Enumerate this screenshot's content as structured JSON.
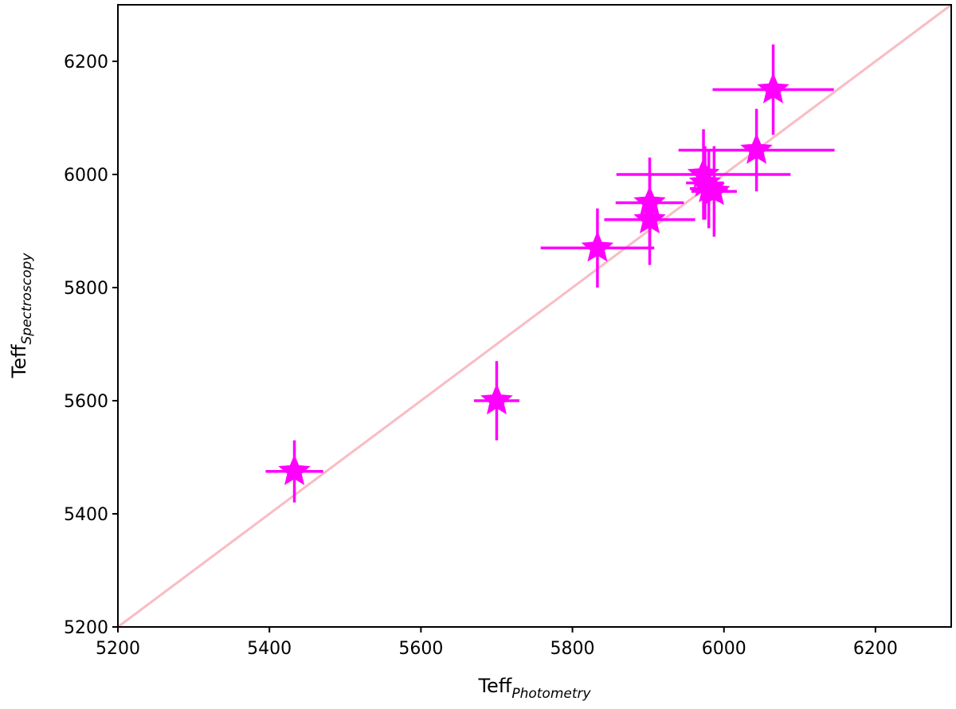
{
  "chart_data": {
    "type": "scatter",
    "title": "",
    "xlabel": {
      "main": "Teff",
      "sub": "Photometry"
    },
    "ylabel": {
      "main": "Teff",
      "sub": "Spectroscopy"
    },
    "xlim": [
      5200,
      6300
    ],
    "ylim": [
      5200,
      6300
    ],
    "xticks": [
      5200,
      5400,
      5600,
      5800,
      6000,
      6200
    ],
    "yticks": [
      5200,
      5400,
      5600,
      5800,
      6000,
      6200
    ],
    "xtick_labels": [
      "5200",
      "5400",
      "5600",
      "5800",
      "6000",
      "6200"
    ],
    "ytick_labels": [
      "5200",
      "5400",
      "5600",
      "5800",
      "6000",
      "6200"
    ],
    "grid": false,
    "legend": "none",
    "reference_line": {
      "type": "one-to-one",
      "from": [
        5200,
        5200
      ],
      "to": [
        6300,
        6300
      ],
      "color": "#f8bcc4"
    },
    "marker": {
      "shape": "star",
      "color": "#ff00ff"
    },
    "points": [
      {
        "x": 5433,
        "y": 5475,
        "xerr": 38,
        "yerr": 55
      },
      {
        "x": 5700,
        "y": 5600,
        "xerr": 30,
        "yerr": 70
      },
      {
        "x": 5833,
        "y": 5870,
        "xerr": 75,
        "yerr": 70
      },
      {
        "x": 5902,
        "y": 5950,
        "xerr": 45,
        "yerr": 80
      },
      {
        "x": 5902,
        "y": 5920,
        "xerr": 60,
        "yerr": 80
      },
      {
        "x": 5973,
        "y": 6000,
        "xerr": 115,
        "yerr": 80
      },
      {
        "x": 5975,
        "y": 5985,
        "xerr": 25,
        "yerr": 65
      },
      {
        "x": 5980,
        "y": 5975,
        "xerr": 25,
        "yerr": 70
      },
      {
        "x": 5987,
        "y": 5970,
        "xerr": 30,
        "yerr": 80
      },
      {
        "x": 6043,
        "y": 6043,
        "xerr": 103,
        "yerr": 73
      },
      {
        "x": 6065,
        "y": 6150,
        "xerr": 80,
        "yerr": 80
      }
    ]
  }
}
